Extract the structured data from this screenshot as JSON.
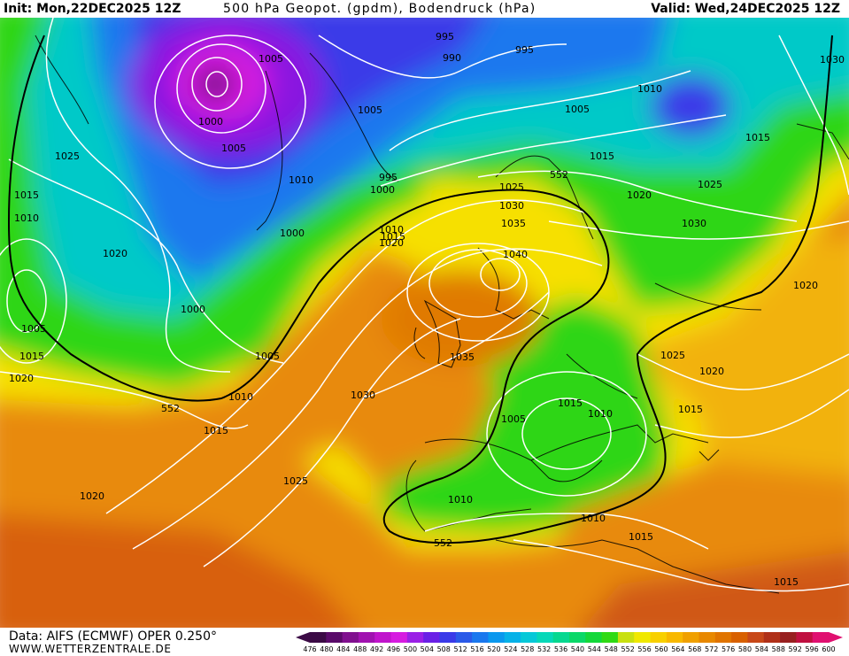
{
  "header": {
    "init": "Init: Mon,22DEC2025 12Z",
    "title": "500 hPa Geopot. (gpdm), Bodendruck (hPa)",
    "valid": "Valid: Wed,24DEC2025 12Z"
  },
  "footer": {
    "data_source": "Data: AIFS (ECMWF) OPER 0.250°",
    "website": "WWW.WETTERZENTRALE.DE"
  },
  "colorbar": {
    "ticks": [
      "476",
      "480",
      "484",
      "488",
      "492",
      "496",
      "500",
      "504",
      "508",
      "512",
      "516",
      "520",
      "524",
      "528",
      "532",
      "536",
      "540",
      "544",
      "548",
      "552",
      "556",
      "560",
      "564",
      "568",
      "572",
      "576",
      "580",
      "584",
      "588",
      "592",
      "596",
      "600"
    ],
    "colors": [
      "#3b0a45",
      "#5a0a6a",
      "#80108f",
      "#a012b0",
      "#c014cc",
      "#d61ce0",
      "#9a20e6",
      "#6a20e6",
      "#3a3ae8",
      "#2a5ae8",
      "#1a78ee",
      "#0a98ee",
      "#06b2e8",
      "#06c8d8",
      "#06d8b8",
      "#06d890",
      "#0ad868",
      "#14d83a",
      "#30da14",
      "#c8e010",
      "#f0e800",
      "#f8d000",
      "#f8b800",
      "#f0a000",
      "#e88800",
      "#e07400",
      "#d86000",
      "#c84818",
      "#b03018",
      "#982020",
      "#c01040",
      "#e01070"
    ]
  },
  "map_labels": {
    "isobars": [
      "1005",
      "995",
      "995",
      "990",
      "1030",
      "1010",
      "1005",
      "1000",
      "1005",
      "1015",
      "1025",
      "1005",
      "1010",
      "995",
      "1000",
      "1025",
      "1015",
      "1020",
      "1025",
      "1010",
      "1030",
      "1035",
      "1010",
      "1015",
      "1020",
      "1000",
      "1020",
      "1040",
      "1030",
      "1020",
      "1005",
      "1000",
      "1005",
      "1015",
      "1035",
      "1025",
      "1020",
      "1020",
      "1010",
      "1030",
      "1015",
      "552",
      "1015",
      "1010",
      "1005",
      "1015",
      "1025",
      "1020",
      "1010",
      "1010",
      "1015",
      "552",
      "1015",
      "552",
      "1015"
    ],
    "contour_552": "552"
  },
  "colors": {
    "background": "#ffffff",
    "isobar": "#ffffff",
    "contour_552": "#000000"
  }
}
